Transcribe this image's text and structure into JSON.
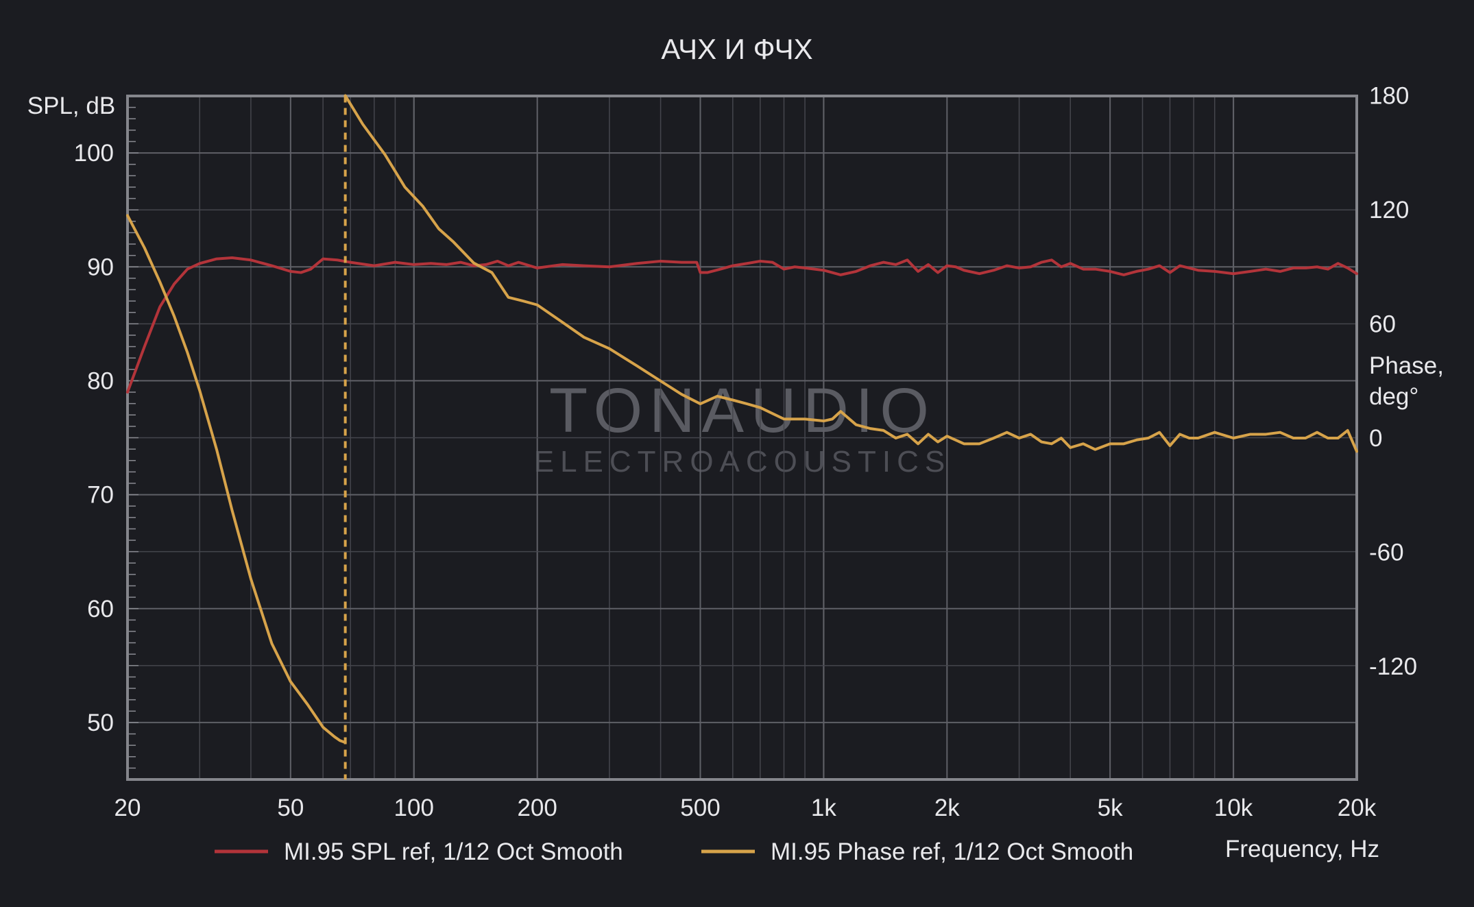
{
  "chart_data": {
    "type": "line",
    "title": "АЧХ И ФЧХ",
    "xlabel": "Frequency, Hz",
    "ylabel": "SPL, dB",
    "y2label": [
      "Phase,",
      "deg°"
    ],
    "x_scale": "log",
    "xlim": [
      20,
      20000
    ],
    "ylim": [
      45,
      105
    ],
    "y2lim": [
      -180,
      180
    ],
    "x_ticks": [
      20,
      50,
      100,
      200,
      500,
      1000,
      2000,
      5000,
      10000,
      20000
    ],
    "x_tick_labels": [
      "20",
      "50",
      "100",
      "200",
      "500",
      "1k",
      "2k",
      "5k",
      "10k",
      "20k"
    ],
    "y_ticks": [
      50,
      60,
      70,
      80,
      90,
      100
    ],
    "y_tick_labels": [
      "50",
      "60",
      "70",
      "80",
      "90",
      "100"
    ],
    "y2_ticks": [
      -120,
      -60,
      0,
      60,
      120,
      180
    ],
    "y2_tick_labels": [
      "-120",
      "-60",
      "0",
      "60",
      "120",
      "180"
    ],
    "grid": true,
    "legend_position": "bottom",
    "watermark": {
      "line1": "TONAUDIO",
      "line2": "ELECTROACOUSTICS"
    },
    "series": [
      {
        "name": "MI.95 SPL ref, 1/12 Oct Smooth",
        "axis": "left",
        "color": "#b3343a",
        "x": [
          20,
          22,
          24,
          26,
          28,
          30,
          33,
          36,
          40,
          45,
          50,
          53,
          56,
          60,
          65,
          70,
          80,
          90,
          100,
          110,
          120,
          130,
          140,
          150,
          160,
          170,
          180,
          200,
          230,
          260,
          300,
          350,
          400,
          450,
          490,
          500,
          520,
          560,
          600,
          650,
          700,
          750,
          800,
          850,
          900,
          1000,
          1100,
          1200,
          1300,
          1400,
          1500,
          1600,
          1700,
          1800,
          1900,
          2000,
          2100,
          2200,
          2400,
          2600,
          2800,
          3000,
          3200,
          3400,
          3600,
          3800,
          4000,
          4300,
          4600,
          5000,
          5400,
          5800,
          6200,
          6600,
          7000,
          7400,
          7800,
          8200,
          9000,
          10000,
          11000,
          12000,
          13000,
          14000,
          15000,
          16000,
          17000,
          18000,
          19000,
          20000
        ],
        "values": [
          79,
          83,
          86.5,
          88.5,
          89.8,
          90.3,
          90.7,
          90.8,
          90.6,
          90.1,
          89.6,
          89.5,
          89.8,
          90.7,
          90.6,
          90.4,
          90.1,
          90.4,
          90.2,
          90.3,
          90.2,
          90.4,
          90.1,
          90.2,
          90.5,
          90.1,
          90.4,
          89.9,
          90.2,
          90.1,
          90.0,
          90.3,
          90.5,
          90.4,
          90.4,
          89.5,
          89.5,
          89.8,
          90.1,
          90.3,
          90.5,
          90.4,
          89.8,
          90.0,
          89.9,
          89.7,
          89.3,
          89.6,
          90.1,
          90.4,
          90.2,
          90.6,
          89.6,
          90.2,
          89.5,
          90.1,
          90.0,
          89.7,
          89.4,
          89.7,
          90.1,
          89.9,
          90.0,
          90.4,
          90.6,
          90.0,
          90.3,
          89.8,
          89.8,
          89.6,
          89.3,
          89.6,
          89.8,
          90.1,
          89.5,
          90.1,
          89.9,
          89.7,
          89.6,
          89.4,
          89.6,
          89.8,
          89.6,
          89.9,
          89.9,
          90.0,
          89.8,
          90.3,
          89.9,
          89.4
        ]
      },
      {
        "name": "MI.95 Phase ref, 1/12 Oct Smooth",
        "axis": "right",
        "color": "#d7a34a",
        "x": [
          20,
          22,
          24,
          26,
          28,
          30,
          33,
          36,
          40,
          45,
          50,
          55,
          60,
          64,
          66,
          68,
          68,
          75,
          85,
          95,
          105,
          115,
          125,
          140,
          155,
          170,
          185,
          200,
          230,
          260,
          300,
          350,
          400,
          450,
          500,
          550,
          600,
          650,
          700,
          800,
          900,
          1000,
          1050,
          1100,
          1200,
          1300,
          1400,
          1500,
          1600,
          1700,
          1800,
          1900,
          2000,
          2200,
          2400,
          2600,
          2800,
          3000,
          3200,
          3400,
          3600,
          3800,
          4000,
          4300,
          4600,
          5000,
          5400,
          5800,
          6200,
          6600,
          7000,
          7400,
          7800,
          8200,
          9000,
          10000,
          11000,
          12000,
          13000,
          14000,
          15000,
          16000,
          17000,
          18000,
          19000,
          20000
        ],
        "values": [
          117,
          100,
          82,
          64,
          45,
          25,
          -6,
          -38,
          -74,
          -108,
          -128,
          -140,
          -152,
          -157,
          -159,
          -160,
          180,
          165,
          149,
          132,
          122,
          110,
          103,
          92,
          87,
          74,
          72,
          70,
          61,
          53,
          47,
          38,
          30,
          23,
          18,
          22,
          20,
          18,
          16,
          10,
          10,
          9,
          10,
          14,
          7,
          5,
          4,
          0,
          2,
          -3,
          2,
          -2,
          1,
          -3,
          -3,
          0,
          3,
          0,
          2,
          -2,
          -3,
          0,
          -5,
          -3,
          -6,
          -3,
          -3,
          -1,
          0,
          3,
          -4,
          2,
          0,
          0,
          3,
          0,
          2,
          2,
          3,
          0,
          0,
          3,
          0,
          0,
          4,
          -7
        ]
      }
    ]
  }
}
